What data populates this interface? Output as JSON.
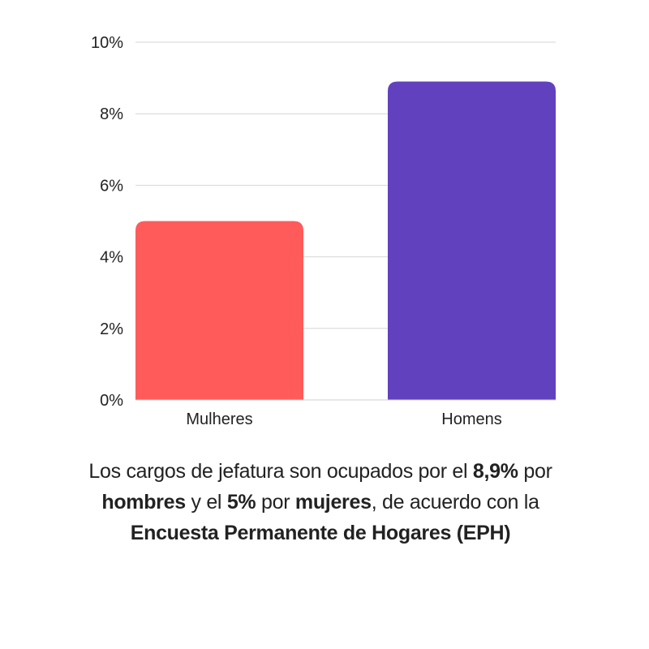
{
  "chart_data": {
    "type": "bar",
    "categories": [
      "Mulheres",
      "Homens"
    ],
    "values": [
      5,
      8.9
    ],
    "colors": [
      "#FF5B5B",
      "#6241BF"
    ],
    "ylim": [
      0,
      10
    ],
    "yticks": [
      0,
      2,
      4,
      6,
      8,
      10
    ],
    "ytick_labels": [
      "0%",
      "2%",
      "4%",
      "6%",
      "8%",
      "10%"
    ],
    "y_unit": "%",
    "grid": true,
    "title": "",
    "xlabel": "",
    "ylabel": ""
  },
  "caption": {
    "part1": "Los cargos de jefatura son ocupados por el ",
    "value_men": "8,9%",
    "part2": " por ",
    "men": "hombres",
    "part3": " y el ",
    "value_women": "5%",
    "part4": " por ",
    "women": "mujeres",
    "part5": ", de acuerdo con la ",
    "source": "Encuesta Permanente de Hogares (EPH)"
  }
}
